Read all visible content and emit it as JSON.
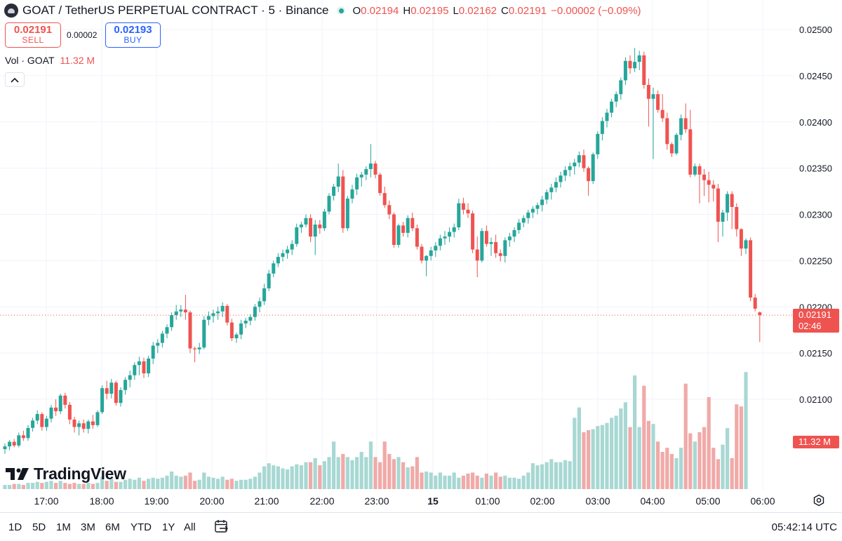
{
  "header": {
    "symbol_title": "GOAT / TetherUS PERPETUAL CONTRACT · 5 · Binance",
    "ohlc": [
      {
        "key": "O",
        "value": "0.02194"
      },
      {
        "key": "H",
        "value": "0.02195"
      },
      {
        "key": "L",
        "value": "0.02162"
      },
      {
        "key": "C",
        "value": "0.02191"
      }
    ],
    "change": "−0.00002 (−0.09%)"
  },
  "trade": {
    "sell_price": "0.02191",
    "sell_label": "SELL",
    "spread": "0.00002",
    "buy_price": "0.02193",
    "buy_label": "BUY"
  },
  "volume_legend": {
    "label": "Vol · GOAT",
    "value": "11.32 M"
  },
  "branding": {
    "name": "TradingView"
  },
  "price_badge": {
    "price": "0.02191",
    "countdown": "02:46"
  },
  "volume_badge": {
    "value": "11.32 M"
  },
  "bottom_bar": {
    "ranges": [
      "1D",
      "5D",
      "1M",
      "3M",
      "6M",
      "YTD",
      "1Y",
      "All"
    ],
    "clock": "05:42:14 UTC"
  },
  "colors": {
    "up": "#26a69a",
    "down": "#ef5350",
    "up_volume": "#a8d8d3",
    "down_volume": "#f0aaa8"
  },
  "chart_data": {
    "type": "candlestick",
    "interval": "5",
    "y_axis": {
      "labels": [
        "0.02500",
        "0.02450",
        "0.02400",
        "0.02350",
        "0.02300",
        "0.02250",
        "0.02200",
        "0.02150",
        "0.02100"
      ],
      "ylim": [
        0.0205,
        0.0253
      ]
    },
    "x_axis": {
      "labels": [
        "17:00",
        "18:00",
        "19:00",
        "20:00",
        "21:00",
        "22:00",
        "23:00",
        "15",
        "01:00",
        "02:00",
        "03:00",
        "04:00",
        "05:00",
        "06:00"
      ]
    },
    "grid": true,
    "last_price": 0.02191,
    "candles": [
      [
        0.02046,
        0.02052,
        0.02041,
        0.02049
      ],
      [
        0.02049,
        0.02056,
        0.02045,
        0.02054
      ],
      [
        0.02054,
        0.02057,
        0.02048,
        0.0205
      ],
      [
        0.0205,
        0.02064,
        0.02048,
        0.02061
      ],
      [
        0.02061,
        0.02066,
        0.02055,
        0.02058
      ],
      [
        0.02058,
        0.02072,
        0.02055,
        0.02069
      ],
      [
        0.02069,
        0.0208,
        0.02065,
        0.02077
      ],
      [
        0.02077,
        0.02088,
        0.02073,
        0.02084
      ],
      [
        0.02084,
        0.02086,
        0.02066,
        0.0207
      ],
      [
        0.0207,
        0.02082,
        0.02066,
        0.02079
      ],
      [
        0.02079,
        0.02094,
        0.02075,
        0.02091
      ],
      [
        0.02091,
        0.021,
        0.02082,
        0.02087
      ],
      [
        0.02087,
        0.02106,
        0.02084,
        0.02104
      ],
      [
        0.02104,
        0.02107,
        0.0209,
        0.02094
      ],
      [
        0.02094,
        0.02097,
        0.02073,
        0.02078
      ],
      [
        0.02078,
        0.02081,
        0.02064,
        0.0207
      ],
      [
        0.0207,
        0.02077,
        0.02061,
        0.02074
      ],
      [
        0.02074,
        0.02078,
        0.02064,
        0.02068
      ],
      [
        0.02068,
        0.02078,
        0.02063,
        0.02076
      ],
      [
        0.02076,
        0.02083,
        0.02068,
        0.02072
      ],
      [
        0.02072,
        0.02088,
        0.0207,
        0.02086
      ],
      [
        0.02086,
        0.02115,
        0.02084,
        0.02112
      ],
      [
        0.02112,
        0.0212,
        0.021,
        0.02106
      ],
      [
        0.02106,
        0.02122,
        0.02101,
        0.02118
      ],
      [
        0.02118,
        0.0212,
        0.02093,
        0.02096
      ],
      [
        0.02096,
        0.02113,
        0.02092,
        0.0211
      ],
      [
        0.0211,
        0.02124,
        0.02105,
        0.02121
      ],
      [
        0.02121,
        0.02131,
        0.02113,
        0.02126
      ],
      [
        0.02126,
        0.0214,
        0.02121,
        0.02137
      ],
      [
        0.02137,
        0.02146,
        0.02126,
        0.02141
      ],
      [
        0.02141,
        0.02145,
        0.02123,
        0.02128
      ],
      [
        0.02128,
        0.02147,
        0.02124,
        0.02144
      ],
      [
        0.02144,
        0.02162,
        0.02138,
        0.02158
      ],
      [
        0.02158,
        0.02165,
        0.0215,
        0.02161
      ],
      [
        0.02161,
        0.02174,
        0.02156,
        0.02171
      ],
      [
        0.02171,
        0.02181,
        0.02166,
        0.02178
      ],
      [
        0.02178,
        0.02194,
        0.02174,
        0.02191
      ],
      [
        0.02191,
        0.02202,
        0.02186,
        0.02195
      ],
      [
        0.02195,
        0.02202,
        0.02189,
        0.02197
      ],
      [
        0.02197,
        0.02213,
        0.02186,
        0.02194
      ],
      [
        0.02194,
        0.02196,
        0.0215,
        0.02155
      ],
      [
        0.02155,
        0.02157,
        0.0214,
        0.02154
      ],
      [
        0.02154,
        0.02161,
        0.02149,
        0.02156
      ],
      [
        0.02156,
        0.0219,
        0.02154,
        0.02186
      ],
      [
        0.02186,
        0.02195,
        0.0218,
        0.0219
      ],
      [
        0.0219,
        0.02197,
        0.02183,
        0.02193
      ],
      [
        0.02193,
        0.022,
        0.02186,
        0.02195
      ],
      [
        0.02195,
        0.02205,
        0.02189,
        0.02201
      ],
      [
        0.02201,
        0.02203,
        0.0218,
        0.02183
      ],
      [
        0.02183,
        0.02187,
        0.02163,
        0.02166
      ],
      [
        0.02166,
        0.02172,
        0.02161,
        0.0217
      ],
      [
        0.0217,
        0.02186,
        0.02165,
        0.02182
      ],
      [
        0.02182,
        0.02188,
        0.02177,
        0.02185
      ],
      [
        0.02185,
        0.02192,
        0.0218,
        0.02189
      ],
      [
        0.02189,
        0.02203,
        0.02185,
        0.022
      ],
      [
        0.022,
        0.0221,
        0.02194,
        0.02206
      ],
      [
        0.02206,
        0.02225,
        0.02202,
        0.0222
      ],
      [
        0.0222,
        0.0224,
        0.02217,
        0.02236
      ],
      [
        0.02236,
        0.0225,
        0.02232,
        0.02247
      ],
      [
        0.02247,
        0.02258,
        0.02243,
        0.02254
      ],
      [
        0.02254,
        0.02262,
        0.02249,
        0.02258
      ],
      [
        0.02258,
        0.02266,
        0.02252,
        0.02262
      ],
      [
        0.02262,
        0.02272,
        0.02256,
        0.02268
      ],
      [
        0.02268,
        0.0229,
        0.02265,
        0.02286
      ],
      [
        0.02286,
        0.02292,
        0.0228,
        0.02289
      ],
      [
        0.02289,
        0.023,
        0.02286,
        0.02296
      ],
      [
        0.02296,
        0.023,
        0.0227,
        0.02276
      ],
      [
        0.02276,
        0.02294,
        0.02256,
        0.02289
      ],
      [
        0.02289,
        0.02294,
        0.02279,
        0.02285
      ],
      [
        0.02285,
        0.02306,
        0.02282,
        0.02303
      ],
      [
        0.02303,
        0.02323,
        0.023,
        0.0232
      ],
      [
        0.0232,
        0.02333,
        0.02315,
        0.0233
      ],
      [
        0.0233,
        0.02355,
        0.02324,
        0.02341
      ],
      [
        0.02341,
        0.02348,
        0.0228,
        0.02285
      ],
      [
        0.02285,
        0.0232,
        0.02282,
        0.02317
      ],
      [
        0.02317,
        0.02332,
        0.02312,
        0.02327
      ],
      [
        0.02327,
        0.02344,
        0.02321,
        0.0234
      ],
      [
        0.0234,
        0.02346,
        0.0233,
        0.02343
      ],
      [
        0.02343,
        0.02352,
        0.02337,
        0.02349
      ],
      [
        0.02349,
        0.02376,
        0.0234,
        0.02355
      ],
      [
        0.02355,
        0.02358,
        0.02339,
        0.02343
      ],
      [
        0.02343,
        0.02345,
        0.0232,
        0.02323
      ],
      [
        0.02323,
        0.0233,
        0.02307,
        0.0231
      ],
      [
        0.0231,
        0.02315,
        0.02295,
        0.023
      ],
      [
        0.023,
        0.02302,
        0.02264,
        0.02267
      ],
      [
        0.02267,
        0.0229,
        0.02264,
        0.02288
      ],
      [
        0.02288,
        0.02292,
        0.02276,
        0.0228
      ],
      [
        0.0228,
        0.02299,
        0.02275,
        0.02296
      ],
      [
        0.02296,
        0.02302,
        0.02282,
        0.02285
      ],
      [
        0.02285,
        0.02289,
        0.02262,
        0.02265
      ],
      [
        0.02265,
        0.02268,
        0.02247,
        0.0225
      ],
      [
        0.0225,
        0.02256,
        0.02233,
        0.02255
      ],
      [
        0.02255,
        0.02265,
        0.0225,
        0.02261
      ],
      [
        0.02261,
        0.0227,
        0.02254,
        0.02266
      ],
      [
        0.02266,
        0.02278,
        0.02261,
        0.02274
      ],
      [
        0.02274,
        0.02282,
        0.02267,
        0.02276
      ],
      [
        0.02276,
        0.02286,
        0.0227,
        0.02281
      ],
      [
        0.02281,
        0.0229,
        0.02275,
        0.02286
      ],
      [
        0.02286,
        0.02317,
        0.02283,
        0.02312
      ],
      [
        0.02312,
        0.02318,
        0.023,
        0.02305
      ],
      [
        0.02305,
        0.02312,
        0.02296,
        0.02301
      ],
      [
        0.02301,
        0.02304,
        0.02258,
        0.02262
      ],
      [
        0.02262,
        0.02276,
        0.02232,
        0.0225
      ],
      [
        0.0225,
        0.02285,
        0.02248,
        0.02282
      ],
      [
        0.02282,
        0.02288,
        0.02265,
        0.02268
      ],
      [
        0.02268,
        0.02275,
        0.02255,
        0.0227
      ],
      [
        0.0227,
        0.02278,
        0.02253,
        0.02258
      ],
      [
        0.02258,
        0.02262,
        0.02249,
        0.02255
      ],
      [
        0.02255,
        0.02275,
        0.02248,
        0.02272
      ],
      [
        0.02272,
        0.0228,
        0.02265,
        0.02276
      ],
      [
        0.02276,
        0.02286,
        0.0227,
        0.02283
      ],
      [
        0.02283,
        0.02295,
        0.02279,
        0.02291
      ],
      [
        0.02291,
        0.02299,
        0.02286,
        0.02296
      ],
      [
        0.02296,
        0.02305,
        0.0229,
        0.02302
      ],
      [
        0.02302,
        0.02309,
        0.02296,
        0.02306
      ],
      [
        0.02306,
        0.02313,
        0.023,
        0.0231
      ],
      [
        0.0231,
        0.0232,
        0.02303,
        0.02316
      ],
      [
        0.02316,
        0.02327,
        0.02311,
        0.02324
      ],
      [
        0.02324,
        0.02333,
        0.02316,
        0.02329
      ],
      [
        0.02329,
        0.0234,
        0.02324,
        0.02335
      ],
      [
        0.02335,
        0.02346,
        0.02329,
        0.02342
      ],
      [
        0.02342,
        0.02352,
        0.02336,
        0.02348
      ],
      [
        0.02348,
        0.02356,
        0.02341,
        0.02352
      ],
      [
        0.02352,
        0.0236,
        0.02343,
        0.02356
      ],
      [
        0.02356,
        0.02368,
        0.02351,
        0.02364
      ],
      [
        0.02364,
        0.0237,
        0.02346,
        0.0235
      ],
      [
        0.0235,
        0.02352,
        0.0232,
        0.02336
      ],
      [
        0.02336,
        0.02367,
        0.02333,
        0.02365
      ],
      [
        0.02365,
        0.0239,
        0.0236,
        0.02387
      ],
      [
        0.02387,
        0.02405,
        0.0238,
        0.02401
      ],
      [
        0.02401,
        0.02414,
        0.02394,
        0.0241
      ],
      [
        0.0241,
        0.02425,
        0.02405,
        0.02422
      ],
      [
        0.02422,
        0.02433,
        0.02416,
        0.0243
      ],
      [
        0.0243,
        0.02448,
        0.02424,
        0.02445
      ],
      [
        0.02445,
        0.0247,
        0.0244,
        0.02466
      ],
      [
        0.02466,
        0.02472,
        0.02452,
        0.02458
      ],
      [
        0.02458,
        0.0248,
        0.02454,
        0.02465
      ],
      [
        0.02465,
        0.02477,
        0.02456,
        0.02472
      ],
      [
        0.02472,
        0.02476,
        0.02436,
        0.0244
      ],
      [
        0.0244,
        0.02447,
        0.02395,
        0.02425
      ],
      [
        0.02425,
        0.02437,
        0.0236,
        0.0243
      ],
      [
        0.0243,
        0.02434,
        0.0241,
        0.02413
      ],
      [
        0.02413,
        0.0243,
        0.024,
        0.02404
      ],
      [
        0.02404,
        0.0241,
        0.0237,
        0.02376
      ],
      [
        0.02376,
        0.02378,
        0.02362,
        0.02366
      ],
      [
        0.02366,
        0.02388,
        0.02364,
        0.02386
      ],
      [
        0.02386,
        0.02408,
        0.0238,
        0.02404
      ],
      [
        0.02404,
        0.0242,
        0.02388,
        0.02392
      ],
      [
        0.02392,
        0.02413,
        0.0234,
        0.02343
      ],
      [
        0.02343,
        0.02355,
        0.02341,
        0.02352
      ],
      [
        0.02352,
        0.02355,
        0.02312,
        0.02343
      ],
      [
        0.02343,
        0.02349,
        0.0232,
        0.02337
      ],
      [
        0.02337,
        0.02346,
        0.02313,
        0.02332
      ],
      [
        0.02332,
        0.02337,
        0.02314,
        0.02328
      ],
      [
        0.02328,
        0.02333,
        0.0227,
        0.02292
      ],
      [
        0.02292,
        0.02305,
        0.02276,
        0.02302
      ],
      [
        0.02302,
        0.02325,
        0.02293,
        0.02322
      ],
      [
        0.02322,
        0.02325,
        0.02284,
        0.02308
      ],
      [
        0.02308,
        0.02312,
        0.02276,
        0.02284
      ],
      [
        0.02284,
        0.02285,
        0.02255,
        0.02263
      ],
      [
        0.02263,
        0.02274,
        0.02257,
        0.02272
      ],
      [
        0.02272,
        0.02275,
        0.02206,
        0.0221
      ],
      [
        0.0221,
        0.02214,
        0.02195,
        0.02198
      ],
      [
        0.02194,
        0.02195,
        0.02162,
        0.02191
      ]
    ],
    "volume": [
      0.4,
      0.4,
      0.5,
      0.5,
      0.4,
      0.6,
      0.6,
      0.7,
      0.6,
      0.7,
      0.8,
      0.6,
      0.8,
      0.6,
      0.5,
      0.6,
      0.5,
      0.5,
      0.6,
      0.5,
      0.6,
      1.2,
      0.8,
      1.0,
      0.7,
      0.7,
      0.9,
      1.0,
      0.9,
      1.1,
      0.8,
      1.0,
      1.1,
      1.0,
      1.1,
      1.3,
      1.7,
      1.3,
      1.2,
      1.3,
      1.6,
      0.8,
      0.9,
      1.6,
      1.2,
      1.1,
      1.0,
      1.2,
      0.9,
      1.0,
      0.8,
      0.9,
      0.9,
      1.0,
      1.2,
      1.6,
      2.2,
      2.5,
      2.3,
      2.2,
      2.0,
      1.9,
      2.2,
      2.4,
      2.3,
      2.6,
      2.6,
      3.0,
      2.3,
      2.7,
      3.1,
      4.6,
      3.1,
      3.4,
      3.1,
      2.8,
      3.1,
      3.6,
      3.1,
      4.6,
      3.1,
      2.6,
      4.6,
      3.4,
      2.9,
      3.1,
      2.6,
      2.1,
      2.2,
      3.1,
      1.6,
      1.7,
      1.6,
      1.3,
      1.6,
      1.3,
      1.3,
      1.6,
      1.1,
      1.3,
      1.5,
      1.6,
      1.3,
      1.1,
      1.5,
      1.3,
      1.6,
      1.2,
      1.3,
      1.1,
      1.1,
      1.0,
      1.3,
      1.6,
      2.5,
      2.3,
      2.4,
      2.6,
      2.9,
      2.6,
      2.6,
      2.8,
      2.7,
      6.9,
      7.9,
      5.5,
      5.7,
      5.8,
      6.1,
      6.2,
      6.4,
      6.9,
      7.1,
      7.8,
      8.4,
      6.0,
      11.0,
      6.0,
      10.0,
      6.6,
      6.3,
      4.6,
      3.6,
      4.0,
      3.4,
      3.0,
      4.0,
      10.2,
      5.4,
      4.6,
      5.5,
      6.0,
      8.9,
      4.0,
      2.9,
      4.3,
      5.9,
      3.0,
      8.2,
      8.0,
      11.32
    ],
    "volume_unit": "M"
  }
}
